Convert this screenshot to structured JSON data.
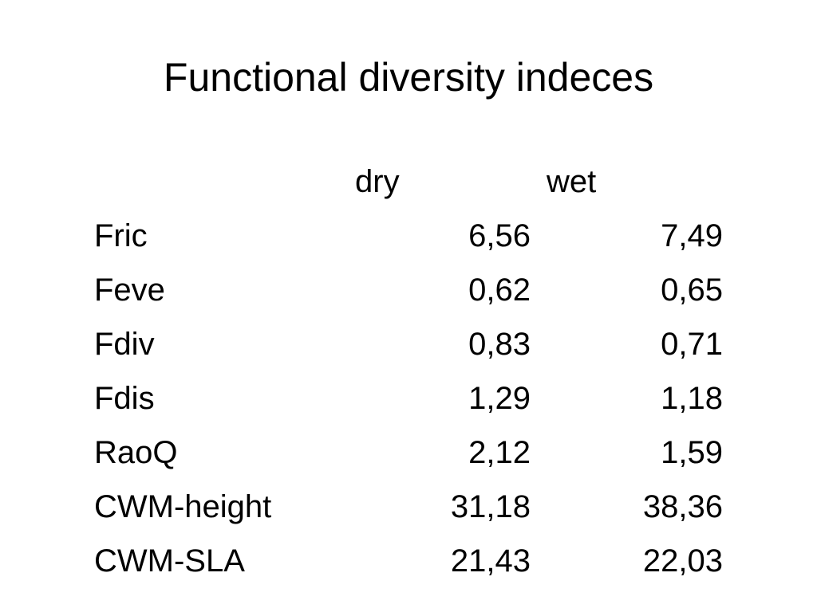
{
  "slide": {
    "title": "Functional diversity indeces"
  },
  "table": {
    "headers": [
      "dry",
      "wet"
    ],
    "rows": [
      {
        "label": "Fric",
        "dry": "6,56",
        "wet": "7,49"
      },
      {
        "label": "Feve",
        "dry": "0,62",
        "wet": "0,65"
      },
      {
        "label": "Fdiv",
        "dry": "0,83",
        "wet": "0,71"
      },
      {
        "label": "Fdis",
        "dry": "1,29",
        "wet": "1,18"
      },
      {
        "label": "RaoQ",
        "dry": "2,12",
        "wet": "1,59"
      },
      {
        "label": "CWM-height",
        "dry": "31,18",
        "wet": "38,36"
      },
      {
        "label": "CWM-SLA",
        "dry": "21,43",
        "wet": "22,03"
      }
    ]
  }
}
